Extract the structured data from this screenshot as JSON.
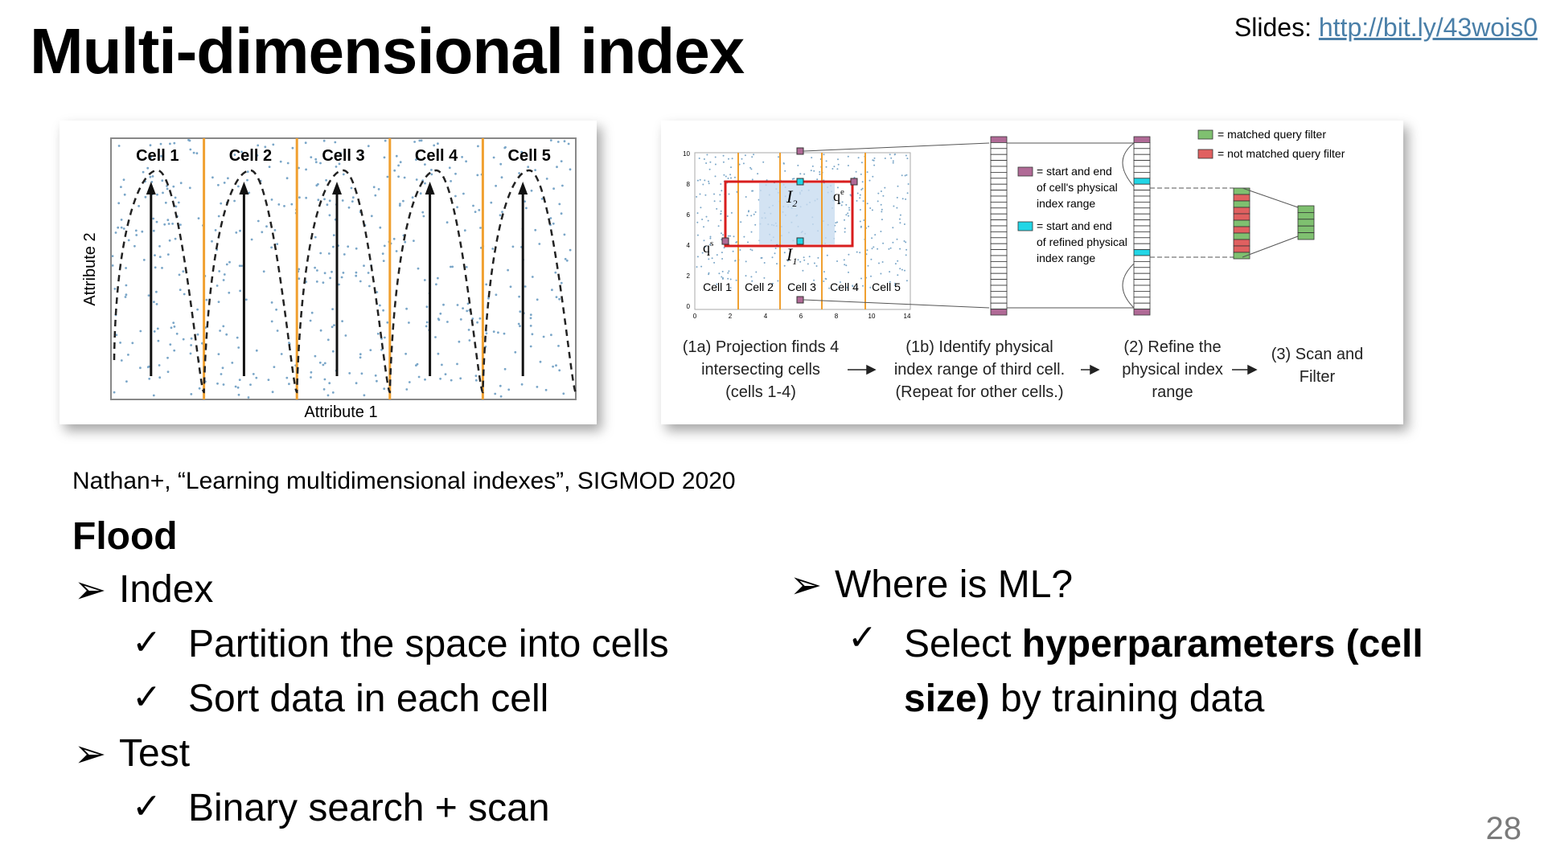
{
  "title": "Multi-dimensional index",
  "slides": {
    "label": "Slides: ",
    "url": "http://bit.ly/43wois0"
  },
  "fig1": {
    "cells": [
      "Cell 1",
      "Cell 2",
      "Cell 3",
      "Cell 4",
      "Cell 5"
    ],
    "xlabel": "Attribute 1",
    "ylabel": "Attribute 2"
  },
  "fig2": {
    "cells": [
      "Cell 1",
      "Cell 2",
      "Cell 3",
      "Cell 4",
      "Cell 5"
    ],
    "yticks": [
      "10",
      "8",
      "6",
      "4",
      "2",
      "0"
    ],
    "xticks": [
      "0",
      "2",
      "4",
      "6",
      "8",
      "10",
      "14"
    ],
    "labels": {
      "qs": "q",
      "qs_sup": "s",
      "qe": "q",
      "qe_sup": "e",
      "i1": "I",
      "i1_sub": "1",
      "i2": "I",
      "i2_sub": "2"
    },
    "legend": {
      "matched": "= matched query filter",
      "not_matched": "= not matched query filter",
      "cell_range": [
        "= start and end",
        "of cell's physical",
        "index range"
      ],
      "refined_range": [
        "= start and end",
        "of refined physical",
        "index range"
      ]
    },
    "steps": [
      [
        "(1a) Projection finds 4",
        "intersecting cells",
        "(cells 1-4)"
      ],
      [
        "(1b) Identify physical",
        "index range of third cell.",
        "(Repeat for other cells.)"
      ],
      [
        "(2) Refine the",
        "physical index",
        "range"
      ],
      [
        "(3) Scan and",
        "Filter"
      ]
    ],
    "colors": {
      "matched": "#7fc070",
      "not_matched": "#e06060",
      "cell_marker": "#b06a96",
      "refined_marker": "#22d6e6",
      "query_box": "#d81e1e",
      "cell_line": "#f0a030"
    }
  },
  "citation": "Nathan+, “Learning multidimensional indexes”, SIGMOD 2020",
  "flood": "Flood",
  "left_bullets": {
    "index": "Index",
    "index_items": [
      "Partition the space into cells",
      "Sort data in each cell"
    ],
    "test": "Test",
    "test_items": [
      "Binary search + scan"
    ]
  },
  "right_bullets": {
    "question": "Where is ML?",
    "answer_pre": "Select ",
    "answer_bold1": "hyperparameters (cell",
    "answer_bold2": "size)",
    "answer_post": " by training data"
  },
  "page_number": "28"
}
